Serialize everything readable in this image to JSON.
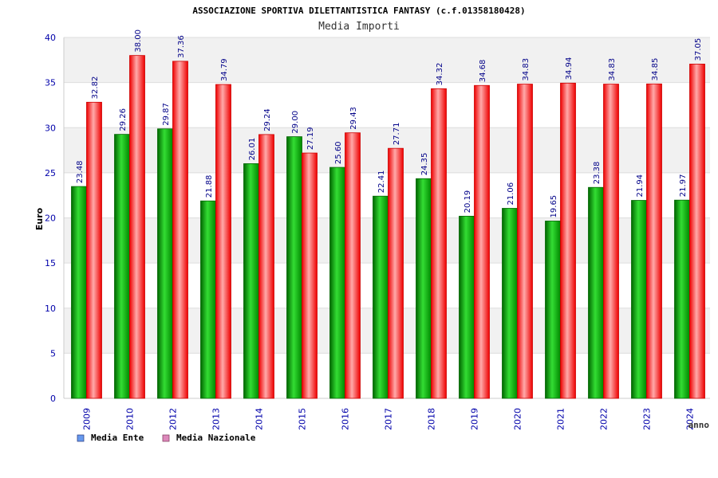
{
  "chart_data": {
    "type": "bar",
    "title": "ASSOCIAZIONE SPORTIVA DILETTANTISTICA FANTASY (c.f.01358180428)",
    "subtitle": "Media Importi",
    "ylabel": "Euro",
    "xlabel": "anno",
    "ylim": [
      0,
      40
    ],
    "yticks": [
      "0",
      "5",
      "10",
      "15",
      "20",
      "25",
      "30",
      "35",
      "40"
    ],
    "grid": true,
    "legend_position": "bottom-left",
    "categories": [
      "2009",
      "2010",
      "2012",
      "2013",
      "2014",
      "2015",
      "2016",
      "2017",
      "2018",
      "2019",
      "2020",
      "2021",
      "2022",
      "2023",
      "2024"
    ],
    "series": [
      {
        "name": "Media Ente",
        "color": "#00aa00",
        "legend_color": "#6699ee",
        "values": [
          23.48,
          29.26,
          29.87,
          21.88,
          26.01,
          29.0,
          25.6,
          22.41,
          24.35,
          20.19,
          21.06,
          19.65,
          23.38,
          21.94,
          21.97
        ],
        "labels": [
          "23.48",
          "29.26",
          "29.87",
          "21.88",
          "26.01",
          "29.00",
          "25.60",
          "22.41",
          "24.35",
          "20.19",
          "21.06",
          "19.65",
          "23.38",
          "21.94",
          "21.97"
        ]
      },
      {
        "name": "Media Nazionale",
        "color": "#ee1111",
        "legend_color": "#dd88bb",
        "values": [
          32.82,
          38.0,
          37.36,
          34.79,
          29.24,
          27.19,
          29.43,
          27.71,
          34.32,
          34.68,
          34.83,
          34.94,
          34.83,
          34.85,
          37.05
        ],
        "labels": [
          "32.82",
          "38.00",
          "37.36",
          "34.79",
          "29.24",
          "27.19",
          "29.43",
          "27.71",
          "34.32",
          "34.68",
          "34.83",
          "34.94",
          "34.83",
          "34.85",
          "37.05"
        ]
      }
    ]
  }
}
